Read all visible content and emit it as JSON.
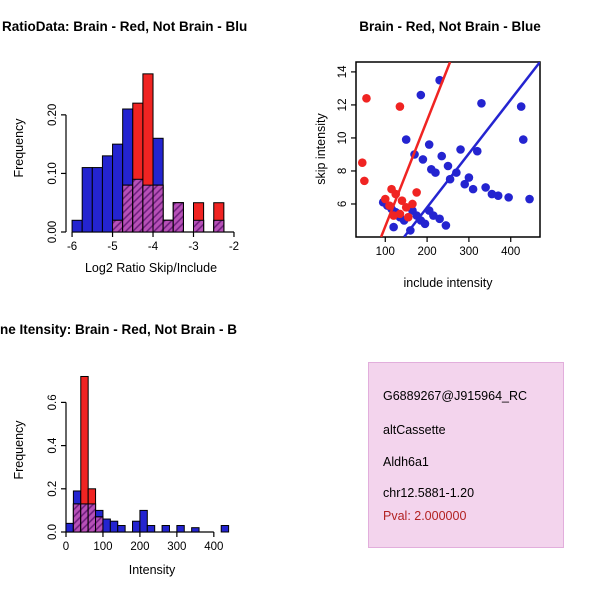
{
  "colors": {
    "red": "#F02422",
    "blue": "#2424D0",
    "hatch_bg": "#B750B7",
    "hatch_line": "#6A1B7A",
    "info_bg": "#F3D4ED",
    "info_border": "#E2AEDC",
    "pval": "#B22222",
    "axis": "#000000",
    "background": "#FFFFFF"
  },
  "chart_data": [
    {
      "type": "bar",
      "id": "hist-ratio",
      "title": "RatioData: Brain - Red, Not Brain - Blu",
      "xlabel": "Log2 Ratio Skip/Include",
      "ylabel": "Frequency",
      "xlim": [
        -6.15,
        -1.95
      ],
      "ylim": [
        0,
        0.28
      ],
      "xticks": [
        -6,
        -5,
        -4,
        -3,
        -2
      ],
      "xtick_labels": [
        "-6",
        "-5",
        "-4",
        "-3",
        "-2"
      ],
      "yticks": [
        0,
        0.1,
        0.2
      ],
      "ytick_labels": [
        "0.00",
        "0.10",
        "0.20"
      ],
      "bin_start": -6,
      "bin_width": 0.25,
      "legend_note": "Brain - Red, Not Brain - Blue, overlap hatched purple",
      "series": [
        {
          "name": "Not Brain",
          "color_key": "blue",
          "values": [
            0.02,
            0.11,
            0.11,
            0.13,
            0.15,
            0.21,
            0.09,
            0.08,
            0.16,
            0.02,
            0.05,
            0,
            0.02,
            0,
            0.02,
            0
          ]
        },
        {
          "name": "Brain",
          "color_key": "red",
          "values": [
            0,
            0,
            0,
            0,
            0.02,
            0.08,
            0.22,
            0.27,
            0.08,
            0.02,
            0.05,
            0,
            0.05,
            0,
            0.05,
            0
          ]
        }
      ]
    },
    {
      "type": "scatter",
      "id": "scatter",
      "title": "Brain - Red, Not Brain - Blue",
      "xlabel": "include intensity",
      "ylabel": "skip intensity",
      "xlim": [
        30,
        470
      ],
      "ylim": [
        4.0,
        14.6
      ],
      "xticks": [
        100,
        200,
        300,
        400
      ],
      "xtick_labels": [
        "100",
        "200",
        "300",
        "400"
      ],
      "yticks": [
        6,
        8,
        10,
        12,
        14
      ],
      "ytick_labels": [
        "6",
        "8",
        "10",
        "12",
        "14"
      ],
      "series": [
        {
          "name": "Brain",
          "color_key": "red",
          "points": [
            [
              55,
              12.4
            ],
            [
              135,
              11.9
            ],
            [
              45,
              8.5
            ],
            [
              50,
              7.4
            ],
            [
              100,
              6.3
            ],
            [
              110,
              5.9
            ],
            [
              115,
              6.9
            ],
            [
              125,
              6.6
            ],
            [
              140,
              6.2
            ],
            [
              150,
              5.8
            ],
            [
              135,
              5.4
            ],
            [
              120,
              5.3
            ],
            [
              155,
              5.2
            ],
            [
              165,
              6.0
            ],
            [
              175,
              6.7
            ]
          ],
          "trend_line": {
            "x1": 90,
            "y1": 4.0,
            "x2": 255,
            "y2": 14.6
          }
        },
        {
          "name": "Not Brain",
          "color_key": "blue",
          "points": [
            [
              230,
              13.5
            ],
            [
              185,
              12.6
            ],
            [
              330,
              12.1
            ],
            [
              425,
              11.9
            ],
            [
              150,
              9.9
            ],
            [
              205,
              9.6
            ],
            [
              280,
              9.3
            ],
            [
              320,
              9.2
            ],
            [
              430,
              9.9
            ],
            [
              170,
              9.0
            ],
            [
              235,
              8.9
            ],
            [
              190,
              8.7
            ],
            [
              250,
              8.3
            ],
            [
              210,
              8.1
            ],
            [
              220,
              7.9
            ],
            [
              270,
              7.9
            ],
            [
              300,
              7.6
            ],
            [
              255,
              7.5
            ],
            [
              290,
              7.2
            ],
            [
              340,
              7.0
            ],
            [
              310,
              6.9
            ],
            [
              355,
              6.6
            ],
            [
              370,
              6.5
            ],
            [
              395,
              6.4
            ],
            [
              445,
              6.3
            ],
            [
              95,
              6.1
            ],
            [
              105,
              5.9
            ],
            [
              115,
              5.7
            ],
            [
              165,
              5.6
            ],
            [
              205,
              5.6
            ],
            [
              125,
              5.5
            ],
            [
              175,
              5.3
            ],
            [
              215,
              5.3
            ],
            [
              135,
              5.2
            ],
            [
              230,
              5.1
            ],
            [
              145,
              5.0
            ],
            [
              185,
              5.0
            ],
            [
              195,
              4.8
            ],
            [
              245,
              4.7
            ],
            [
              120,
              4.6
            ],
            [
              160,
              4.4
            ]
          ],
          "trend_line": {
            "x1": 145,
            "y1": 4.0,
            "x2": 470,
            "y2": 14.6
          }
        }
      ]
    },
    {
      "type": "bar",
      "id": "hist-intensity",
      "title": "ne Itensity: Brain - Red, Not Brain - B",
      "xlabel": "Intensity",
      "ylabel": "Frequency",
      "xlim": [
        0,
        460
      ],
      "ylim": [
        0,
        0.75
      ],
      "xticks": [
        0,
        100,
        200,
        300,
        400
      ],
      "xtick_labels": [
        "0",
        "100",
        "200",
        "300",
        "400"
      ],
      "yticks": [
        0,
        0.2,
        0.4,
        0.6
      ],
      "ytick_labels": [
        "0.0",
        "0.2",
        "0.4",
        "0.6"
      ],
      "bin_start": 0,
      "bin_width": 20,
      "legend_note": "Brain - Red, Not Brain - Blue, overlap hatched purple",
      "series": [
        {
          "name": "Not Brain",
          "color_key": "blue",
          "values": [
            0.04,
            0.19,
            0.13,
            0.13,
            0.1,
            0.06,
            0.05,
            0.03,
            0,
            0.05,
            0.1,
            0.03,
            0,
            0.03,
            0,
            0.03,
            0,
            0.02,
            0,
            0,
            0,
            0.03
          ]
        },
        {
          "name": "Brain",
          "color_key": "red",
          "values": [
            0,
            0.13,
            0.72,
            0.2,
            0.07,
            0,
            0,
            0,
            0,
            0,
            0,
            0,
            0,
            0,
            0,
            0,
            0,
            0,
            0,
            0,
            0,
            0
          ]
        }
      ]
    }
  ],
  "info_box": {
    "lines": [
      "G6889267@J915964_RC",
      "altCassette",
      "Aldh6a1",
      "chr12.5881-1.20"
    ],
    "pval": "Pval: 2.000000"
  }
}
